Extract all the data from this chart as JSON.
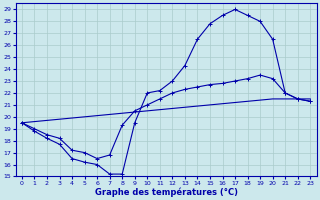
{
  "xlabel": "Graphe des températures (°C)",
  "bg_color": "#cce8ec",
  "grid_color": "#aacccc",
  "line_color": "#0000aa",
  "xlim": [
    -0.5,
    23.5
  ],
  "ylim": [
    15,
    29.5
  ],
  "xticks": [
    0,
    1,
    2,
    3,
    4,
    5,
    6,
    7,
    8,
    9,
    10,
    11,
    12,
    13,
    14,
    15,
    16,
    17,
    18,
    19,
    20,
    21,
    22,
    23
  ],
  "yticks": [
    15,
    16,
    17,
    18,
    19,
    20,
    21,
    22,
    23,
    24,
    25,
    26,
    27,
    28,
    29
  ],
  "line1_x": [
    0,
    1,
    2,
    3,
    4,
    5,
    6,
    7,
    8,
    9,
    10,
    11,
    12,
    13,
    14,
    15,
    16,
    17,
    18,
    19,
    20,
    21,
    22,
    23
  ],
  "line1_y": [
    19.5,
    18.8,
    18.2,
    17.7,
    16.5,
    16.2,
    16.0,
    15.2,
    15.2,
    19.5,
    22.0,
    22.2,
    23.0,
    24.3,
    26.5,
    27.8,
    28.5,
    29.0,
    28.5,
    28.0,
    26.5,
    22.0,
    21.5,
    21.3
  ],
  "line2_x": [
    0,
    1,
    2,
    3,
    4,
    5,
    6,
    7,
    8,
    9,
    10,
    11,
    12,
    13,
    14,
    15,
    16,
    17,
    18,
    19,
    20,
    21,
    22,
    23
  ],
  "line2_y": [
    19.5,
    19.0,
    18.5,
    18.2,
    17.2,
    17.0,
    16.5,
    16.8,
    19.3,
    20.5,
    21.0,
    21.5,
    22.0,
    22.3,
    22.5,
    22.7,
    22.8,
    23.0,
    23.2,
    23.5,
    23.2,
    22.0,
    21.5,
    21.3
  ],
  "line3_x": [
    0,
    1,
    2,
    3,
    4,
    5,
    6,
    7,
    8,
    9,
    10,
    11,
    12,
    13,
    14,
    15,
    16,
    17,
    18,
    19,
    20,
    21,
    22,
    23
  ],
  "line3_y": [
    19.5,
    19.6,
    19.7,
    19.8,
    19.9,
    20.0,
    20.1,
    20.2,
    20.3,
    20.4,
    20.5,
    20.6,
    20.7,
    20.8,
    20.9,
    21.0,
    21.1,
    21.2,
    21.3,
    21.4,
    21.5,
    21.5,
    21.5,
    21.5
  ]
}
